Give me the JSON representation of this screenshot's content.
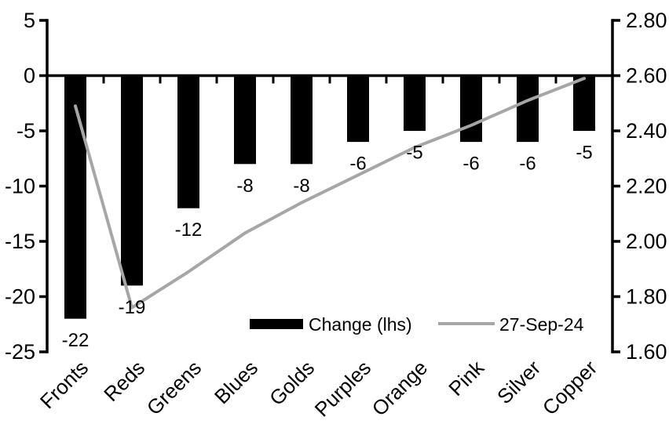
{
  "chart_data": {
    "type": "bar+line",
    "title": "",
    "categories": [
      "Fronts",
      "Reds",
      "Greens",
      "Blues",
      "Golds",
      "Purples",
      "Orange",
      "Pink",
      "Silver",
      "Copper"
    ],
    "series": [
      {
        "name": "Change (lhs)",
        "type": "bar",
        "axis": "left",
        "color": "#000000",
        "values": [
          -22,
          -19,
          -12,
          -8,
          -8,
          -6,
          -5,
          -6,
          -6,
          -5
        ],
        "data_labels": [
          "-22",
          "-19",
          "-12",
          "-8",
          "-8",
          "-6",
          "-5",
          "-6",
          "-6",
          "-5"
        ]
      },
      {
        "name": "27-Sep-24",
        "type": "line",
        "axis": "right",
        "color": "#a6a6a6",
        "values": [
          2.49,
          1.76,
          1.89,
          2.03,
          2.14,
          2.24,
          2.34,
          2.42,
          2.51,
          2.59
        ]
      }
    ],
    "left_axis": {
      "min": -25,
      "max": 5,
      "step": 5,
      "tick_labels": [
        "5",
        "0",
        "-5",
        "-10",
        "-15",
        "-20",
        "-25"
      ]
    },
    "right_axis": {
      "min": 1.6,
      "max": 2.8,
      "step": 0.2,
      "tick_labels": [
        "2.80",
        "2.60",
        "2.40",
        "2.20",
        "2.00",
        "1.80",
        "1.60"
      ]
    },
    "legend": {
      "position": "bottom-center-inside",
      "bar_label": "Change (lhs)",
      "line_label": "27-Sep-24"
    },
    "layout_hints": {
      "grid": "off",
      "bar_baseline": 0,
      "category_label_rotation_deg": -45
    },
    "colors": {
      "bar": "#000000",
      "line": "#a6a6a6",
      "axis": "#000000",
      "text": "#000000",
      "background": "#ffffff"
    }
  }
}
